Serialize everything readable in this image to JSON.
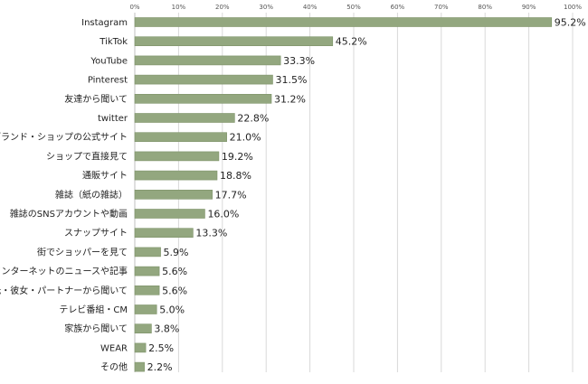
{
  "chart_data": {
    "type": "bar",
    "orientation": "horizontal",
    "categories": [
      "Instagram",
      "TikTok",
      "YouTube",
      "Pinterest",
      "友達から聞いて",
      "twitter",
      "ブランド・ショップの公式サイト",
      "ショップで直接見て",
      "通販サイト",
      "雑誌（紙の雑誌）",
      "雑誌のSNSアカウントや動画",
      "スナップサイト",
      "街でショッパーを見て",
      "インターネットのニュースや記事",
      "彼氏・彼女・パートナーから聞いて",
      "テレビ番組・CM",
      "家族から聞いて",
      "WEAR",
      "その他"
    ],
    "values": [
      95.2,
      45.2,
      33.3,
      31.5,
      31.2,
      22.8,
      21.0,
      19.2,
      18.8,
      17.7,
      16.0,
      13.3,
      5.9,
      5.6,
      5.6,
      5.0,
      3.8,
      2.5,
      2.2
    ],
    "value_labels": [
      "95.2%",
      "45.2%",
      "33.3%",
      "31.5%",
      "31.2%",
      "22.8%",
      "21.0%",
      "19.2%",
      "18.8%",
      "17.7%",
      "16.0%",
      "13.3%",
      "5.9%",
      "5.6%",
      "5.6%",
      "5.0%",
      "3.8%",
      "2.5%",
      "2.2%"
    ],
    "x_ticks": [
      "0%",
      "10%",
      "20%",
      "30%",
      "40%",
      "50%",
      "60%",
      "70%",
      "80%",
      "90%",
      "100%"
    ],
    "xlim": [
      0,
      100
    ],
    "grid": true,
    "axis_position": "top",
    "bar_color": "#93a77f",
    "bar_border_color": "#7d9268"
  }
}
